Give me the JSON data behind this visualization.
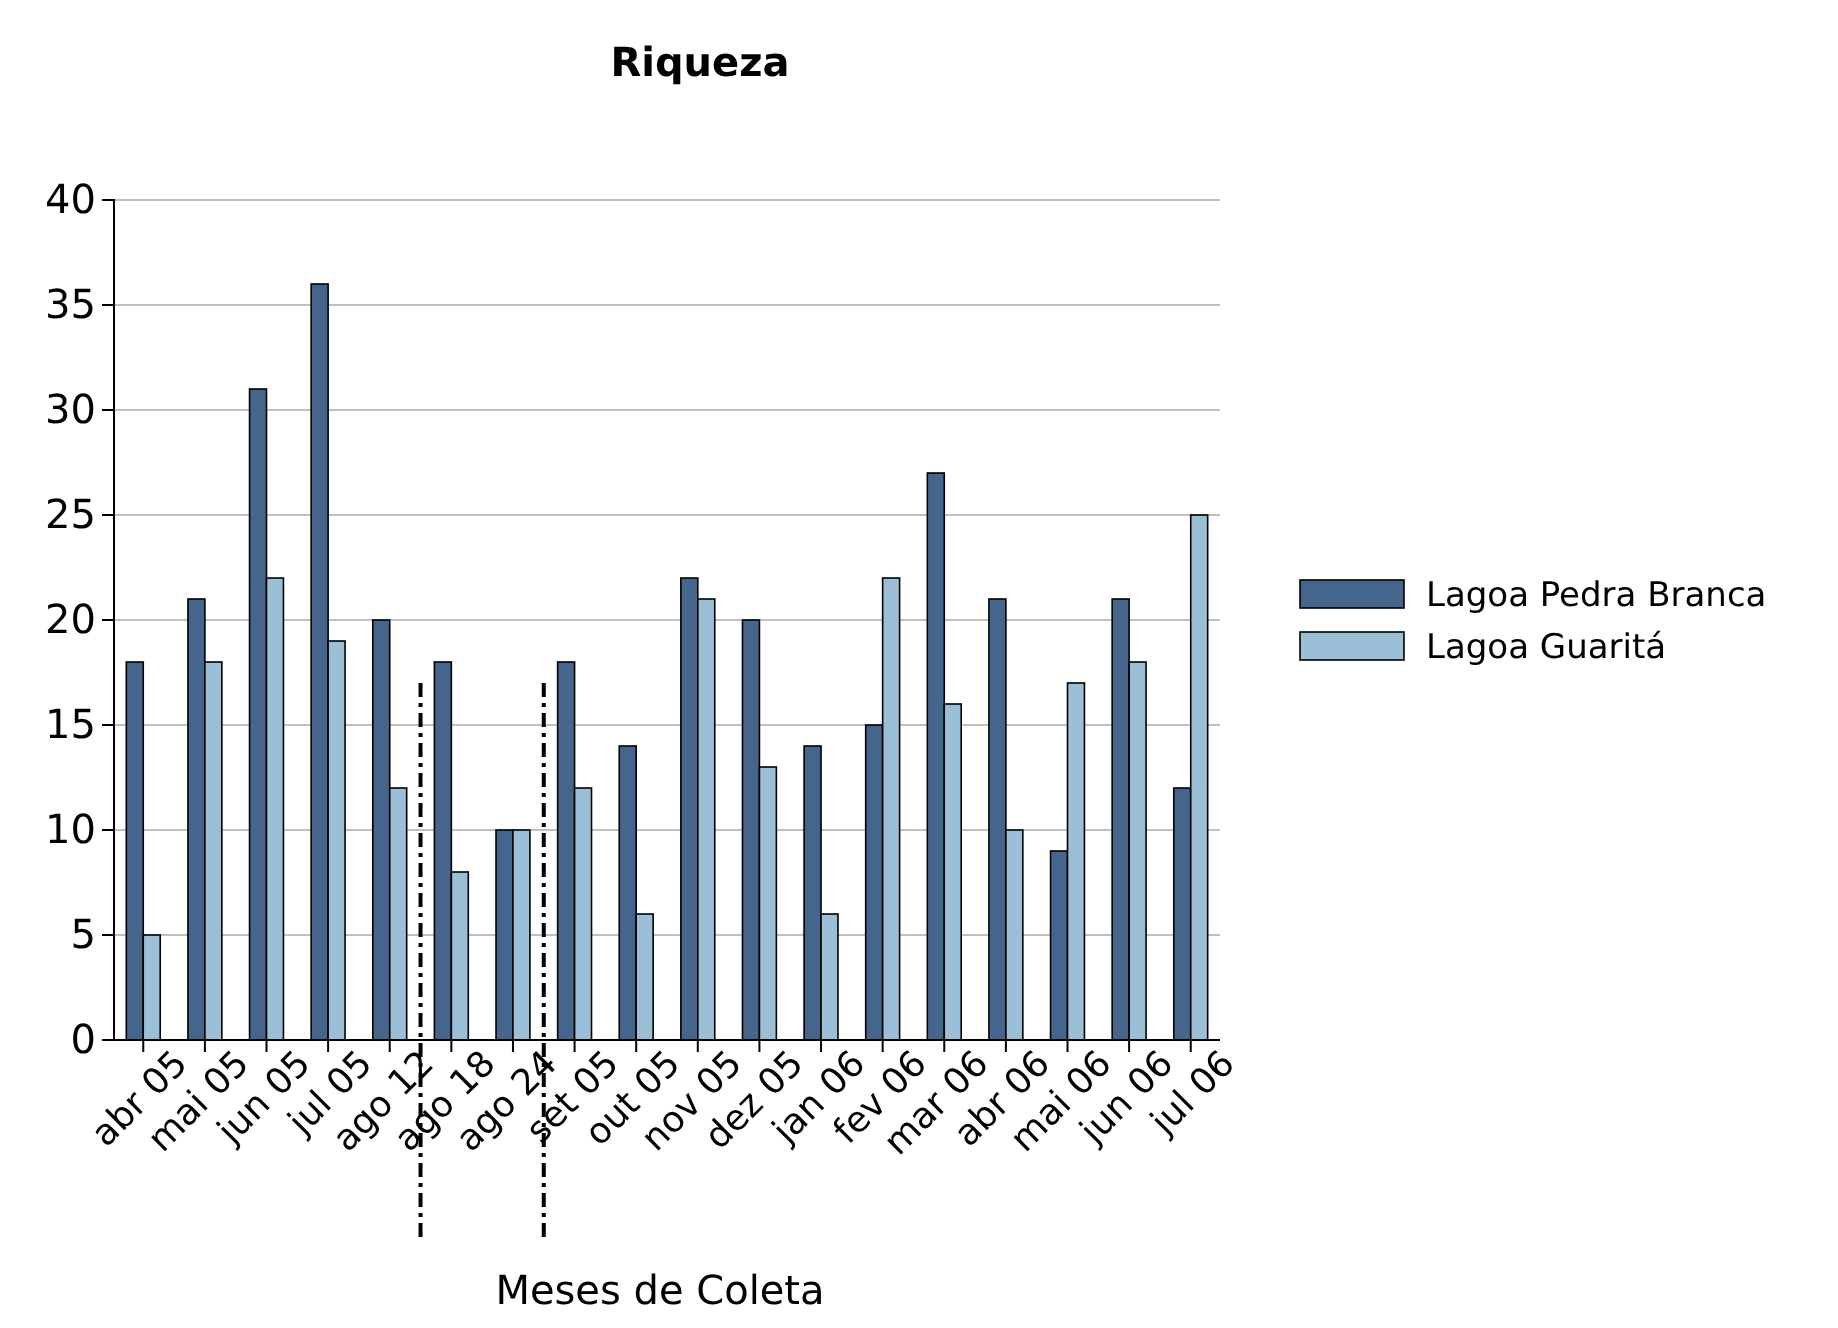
{
  "chart_data": {
    "type": "bar",
    "title": "Riqueza",
    "xlabel": "Meses de Coleta",
    "categories": [
      "abr 05",
      "mai 05",
      "jun 05",
      "jul 05",
      "ago 12",
      "ago 18",
      "ago 24",
      "set 05",
      "out 05",
      "nov 05",
      "dez 05",
      "jan 06",
      "fev 06",
      "mar 06",
      "abr 06",
      "mai 06",
      "jun 06",
      "jul 06"
    ],
    "series": [
      {
        "name": "Lagoa Pedra Branca",
        "color": "#45658c",
        "values": [
          18,
          21,
          31,
          36,
          20,
          18,
          10,
          18,
          14,
          22,
          20,
          14,
          15,
          27,
          21,
          9,
          21,
          12
        ]
      },
      {
        "name": "Lagoa Guaritá",
        "color": "#9bbfd6",
        "values": [
          5,
          18,
          22,
          19,
          12,
          8,
          10,
          12,
          6,
          21,
          13,
          6,
          22,
          16,
          10,
          17,
          18,
          25
        ]
      }
    ],
    "ylim": [
      0,
      40
    ],
    "yticks": [
      0,
      5,
      10,
      15,
      20,
      25,
      30,
      35,
      40
    ],
    "grid": "y",
    "legend": "right",
    "ref_lines": [
      {
        "axis": "x",
        "value": "ago 12",
        "color": "#000000",
        "line_style": "dashdot"
      },
      {
        "axis": "x",
        "value": "ago 24",
        "color": "#000000",
        "line_style": "dashdot"
      }
    ]
  }
}
